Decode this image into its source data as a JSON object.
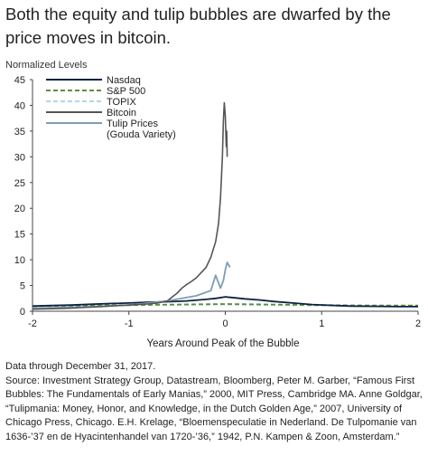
{
  "title": "Both the equity and tulip bubbles are dwarfed by the price moves in bitcoin.",
  "chart_data": {
    "type": "line",
    "ylabel": "Normalized Levels",
    "xlabel": "Years Around Peak of the Bubble",
    "xlim": [
      -2,
      2
    ],
    "ylim": [
      0,
      45
    ],
    "x_ticks": [
      "-2",
      "-1",
      "0",
      "1",
      "2"
    ],
    "y_ticks": [
      "0",
      "5",
      "10",
      "15",
      "20",
      "25",
      "30",
      "35",
      "40",
      "45"
    ],
    "grid": false,
    "legend_position": "top-left",
    "series": [
      {
        "name": "Nasdaq",
        "color": "#0d2240",
        "dash": "solid",
        "points": [
          [
            -2,
            1.0
          ],
          [
            -1.8,
            1.1
          ],
          [
            -1.6,
            1.2
          ],
          [
            -1.4,
            1.35
          ],
          [
            -1.2,
            1.5
          ],
          [
            -1.0,
            1.6
          ],
          [
            -0.8,
            1.75
          ],
          [
            -0.6,
            1.85
          ],
          [
            -0.4,
            2.0
          ],
          [
            -0.2,
            2.3
          ],
          [
            -0.1,
            2.5
          ],
          [
            0,
            2.8
          ],
          [
            0.1,
            2.6
          ],
          [
            0.2,
            2.4
          ],
          [
            0.35,
            2.2
          ],
          [
            0.5,
            1.9
          ],
          [
            0.7,
            1.6
          ],
          [
            0.9,
            1.3
          ],
          [
            1.1,
            1.15
          ],
          [
            1.3,
            1.0
          ],
          [
            1.6,
            0.95
          ],
          [
            1.8,
            0.9
          ],
          [
            2.0,
            0.9
          ]
        ]
      },
      {
        "name": "S&P 500",
        "color": "#5a8f3c",
        "dash": "dashed",
        "points": [
          [
            -2,
            1.0
          ],
          [
            -1.5,
            1.1
          ],
          [
            -1.0,
            1.2
          ],
          [
            -0.5,
            1.3
          ],
          [
            0,
            1.4
          ],
          [
            0.5,
            1.3
          ],
          [
            1.0,
            1.2
          ],
          [
            1.5,
            1.1
          ],
          [
            2.0,
            1.1
          ]
        ]
      },
      {
        "name": "TOPIX",
        "color": "#b7d3e6",
        "dash": "dashed",
        "points": [
          [
            -2,
            1.0
          ],
          [
            -1.5,
            1.1
          ],
          [
            -1.0,
            1.15
          ],
          [
            -0.5,
            1.25
          ],
          [
            0,
            1.3
          ],
          [
            0.5,
            1.2
          ],
          [
            1.0,
            1.1
          ],
          [
            1.5,
            1.05
          ],
          [
            2.0,
            1.0
          ]
        ]
      },
      {
        "name": "Bitcoin",
        "color": "#555555",
        "dash": "solid",
        "points": [
          [
            -2,
            0.4
          ],
          [
            -1.9,
            0.45
          ],
          [
            -1.8,
            0.5
          ],
          [
            -1.7,
            0.55
          ],
          [
            -1.6,
            0.6
          ],
          [
            -1.5,
            0.7
          ],
          [
            -1.4,
            0.8
          ],
          [
            -1.3,
            0.9
          ],
          [
            -1.2,
            1.0
          ],
          [
            -1.1,
            1.1
          ],
          [
            -1.0,
            1.2
          ],
          [
            -0.9,
            1.3
          ],
          [
            -0.8,
            1.4
          ],
          [
            -0.7,
            1.6
          ],
          [
            -0.6,
            2.0
          ],
          [
            -0.55,
            2.8
          ],
          [
            -0.5,
            3.5
          ],
          [
            -0.45,
            4.5
          ],
          [
            -0.4,
            5.2
          ],
          [
            -0.35,
            5.8
          ],
          [
            -0.3,
            6.5
          ],
          [
            -0.25,
            7.5
          ],
          [
            -0.2,
            8.5
          ],
          [
            -0.15,
            10.5
          ],
          [
            -0.1,
            13.5
          ],
          [
            -0.07,
            17.0
          ],
          [
            -0.05,
            22.0
          ],
          [
            -0.03,
            30.0
          ],
          [
            -0.02,
            37.0
          ],
          [
            -0.01,
            40.5
          ],
          [
            0.0,
            38.0
          ],
          [
            0.01,
            32.0
          ],
          [
            0.015,
            35.0
          ],
          [
            0.02,
            30.0
          ]
        ]
      },
      {
        "name": "Tulip Prices (Gouda Variety)",
        "color": "#7f9db5",
        "dash": "solid",
        "points": [
          [
            -2,
            0.6
          ],
          [
            -1.5,
            0.8
          ],
          [
            -1.0,
            1.2
          ],
          [
            -0.6,
            2.0
          ],
          [
            -0.3,
            3.0
          ],
          [
            -0.15,
            4.0
          ],
          [
            -0.1,
            7.0
          ],
          [
            -0.05,
            4.5
          ],
          [
            -0.02,
            6.0
          ],
          [
            0,
            8.0
          ],
          [
            0.02,
            9.5
          ],
          [
            0.05,
            8.5
          ]
        ]
      }
    ]
  },
  "legend": {
    "items": [
      "Nasdaq",
      "S&P 500",
      "TOPIX",
      "Bitcoin",
      "Tulip Prices",
      "(Gouda Variety)"
    ]
  },
  "notes": {
    "data_through": "Data through December 31, 2017.",
    "source": "Source: Investment Strategy Group, Datastream, Bloomberg, Peter M. Garber, “Famous First Bubbles: The Fundamentals of Early Manias,” 2000, MIT Press, Cambridge MA. Anne Goldgar, “Tulipmania: Money, Honor, and Knowledge, in the Dutch Golden Age,” 2007, University of Chicago Press, Chicago. E.H. Krelage, “Bloemenspeculatie in Nederland. De Tulpomanie van 1636-’37 en de Hyacintenhandel van 1720-’36,” 1942, P.N. Kampen & Zoon, Amsterdam.”"
  }
}
